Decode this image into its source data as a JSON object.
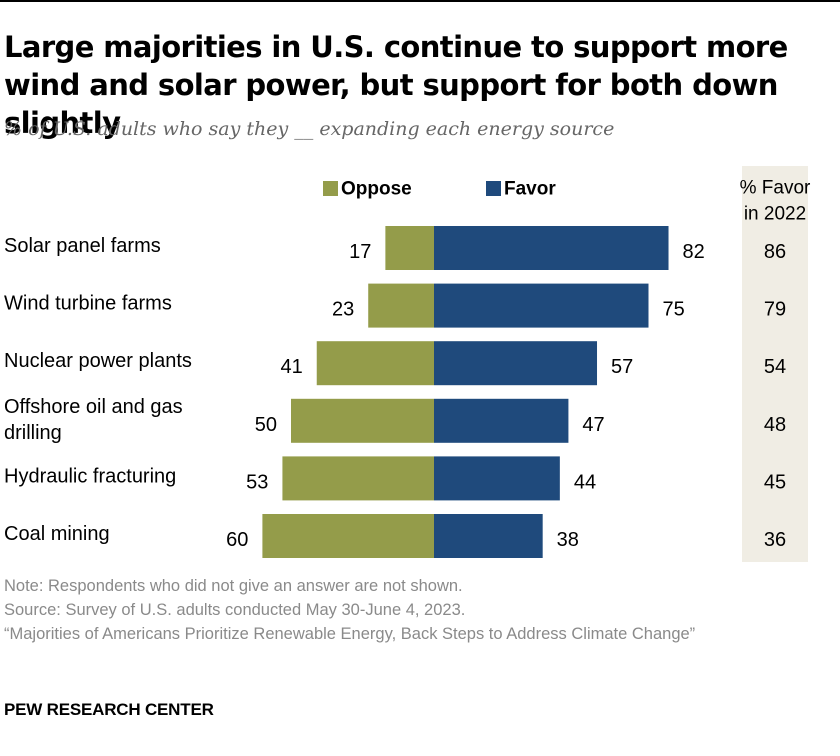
{
  "title": "Large majorities in U.S. continue to support more wind and solar power, but support for both down slightly",
  "subtitle": "% of U.S. adults who say they __ expanding each energy source",
  "colors": {
    "oppose": "#949c4a",
    "favor": "#1f4a7c",
    "column_bg": "#f0ede4"
  },
  "chart_data": {
    "type": "bar",
    "orientation": "horizontal-diverging",
    "categories": [
      [
        "Solar panel farms"
      ],
      [
        "Wind turbine farms"
      ],
      [
        "Nuclear power plants"
      ],
      [
        "Offshore oil and gas",
        "drilling"
      ],
      [
        "Hydraulic fracturing"
      ],
      [
        "Coal mining"
      ]
    ],
    "series": [
      {
        "name": "Oppose",
        "values": [
          17,
          23,
          41,
          50,
          53,
          60
        ]
      },
      {
        "name": "Favor",
        "values": [
          82,
          75,
          57,
          47,
          44,
          38
        ]
      }
    ],
    "extra_column": {
      "header": [
        "% Favor",
        "in 2022"
      ],
      "values": [
        86,
        79,
        54,
        48,
        45,
        36
      ]
    },
    "legend_placement": "top-center",
    "grid": false
  },
  "notes": {
    "note": "Note: Respondents who did not give an answer are not shown.",
    "source": "Source: Survey of U.S. adults conducted May 30-June 4, 2023.",
    "report": "“Majorities of Americans Prioritize Renewable Energy, Back Steps to Address Climate Change”"
  },
  "brand": "PEW RESEARCH CENTER"
}
